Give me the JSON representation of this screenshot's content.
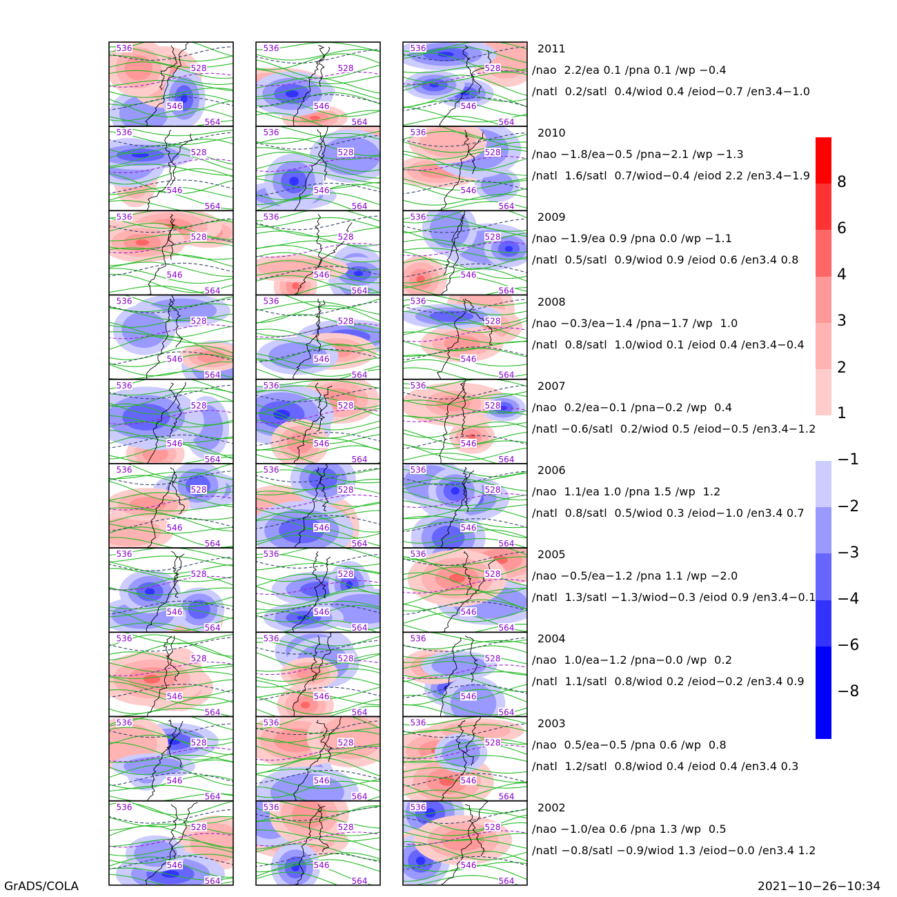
{
  "chart_data": {
    "type": "heatmap",
    "columns": 3,
    "years": [
      {
        "year": "2011",
        "line1": "/nao  2.2/ea 0.1 /pna 0.1 /wp −0.4",
        "line2": "/natl  0.2/satl  0.4/wiod 0.4 /eiod−0.7 /en3.4−1.0"
      },
      {
        "year": "2010",
        "line1": "/nao −1.8/ea−0.5 /pna−2.1 /wp −1.3",
        "line2": "/natl  1.6/satl  0.7/wiod−0.4 /eiod 2.2 /en3.4−1.9"
      },
      {
        "year": "2009",
        "line1": "/nao −1.9/ea 0.9 /pna 0.0 /wp −1.1",
        "line2": "/natl  0.5/satl  0.9/wiod 0.9 /eiod 0.6 /en3.4 0.8"
      },
      {
        "year": "2008",
        "line1": "/nao −0.3/ea−1.4 /pna−1.7 /wp  1.0",
        "line2": "/natl  0.8/satl  1.0/wiod 0.1 /eiod 0.4 /en3.4−0.4"
      },
      {
        "year": "2007",
        "line1": "/nao  0.2/ea−0.1 /pna−0.2 /wp  0.4",
        "line2": "/natl −0.6/satl  0.2/wiod 0.5 /eiod−0.5 /en3.4−1.2"
      },
      {
        "year": "2006",
        "line1": "/nao  1.1/ea 1.0 /pna 1.5 /wp  1.2",
        "line2": "/natl  0.8/satl  0.5/wiod 0.3 /eiod−1.0 /en3.4 0.7"
      },
      {
        "year": "2005",
        "line1": "/nao −0.5/ea−1.2 /pna 1.1 /wp −2.0",
        "line2": "/natl  1.3/satl −1.3/wiod−0.3 /eiod 0.9 /en3.4−0.1"
      },
      {
        "year": "2004",
        "line1": "/nao  1.0/ea−1.2 /pna−0.0 /wp  0.2",
        "line2": "/natl  1.1/satl  0.8/wiod 0.2 /eiod−0.2 /en3.4 0.9"
      },
      {
        "year": "2003",
        "line1": "/nao  0.5/ea−0.5 /pna 0.6 /wp  0.8",
        "line2": "/natl  1.2/satl  0.8/wiod 0.4 /eiod 0.4 /en3.4 0.3"
      },
      {
        "year": "2002",
        "line1": "/nao −1.0/ea 0.6 /pna 1.3 /wp  0.5",
        "line2": "/natl −0.8/satl −0.9/wiod 1.3 /eiod−0.0 /en3.4 1.2"
      }
    ],
    "contour_labels": [
      "536",
      "528",
      "546",
      "564"
    ],
    "colorbar_positive": {
      "ticks": [
        "8",
        "6",
        "4",
        "3",
        "2",
        "1"
      ],
      "colors": [
        "#ff0000",
        "#ff3333",
        "#ff6666",
        "#ff9999",
        "#ffb3b3",
        "#ffcccc"
      ]
    },
    "colorbar_negative": {
      "ticks": [
        "−1",
        "−2",
        "−3",
        "−4",
        "−6",
        "−8"
      ],
      "colors": [
        "#ccccff",
        "#9999ff",
        "#6666ff",
        "#3333ff",
        "#0000ff",
        "#0000ff"
      ]
    },
    "contour_colors": {
      "green": "#22bb22",
      "navy": "#334466",
      "dashed": "#9922cc"
    }
  },
  "footer": {
    "left": "GrADS/COLA",
    "right": "2021−10−26−10:34"
  }
}
